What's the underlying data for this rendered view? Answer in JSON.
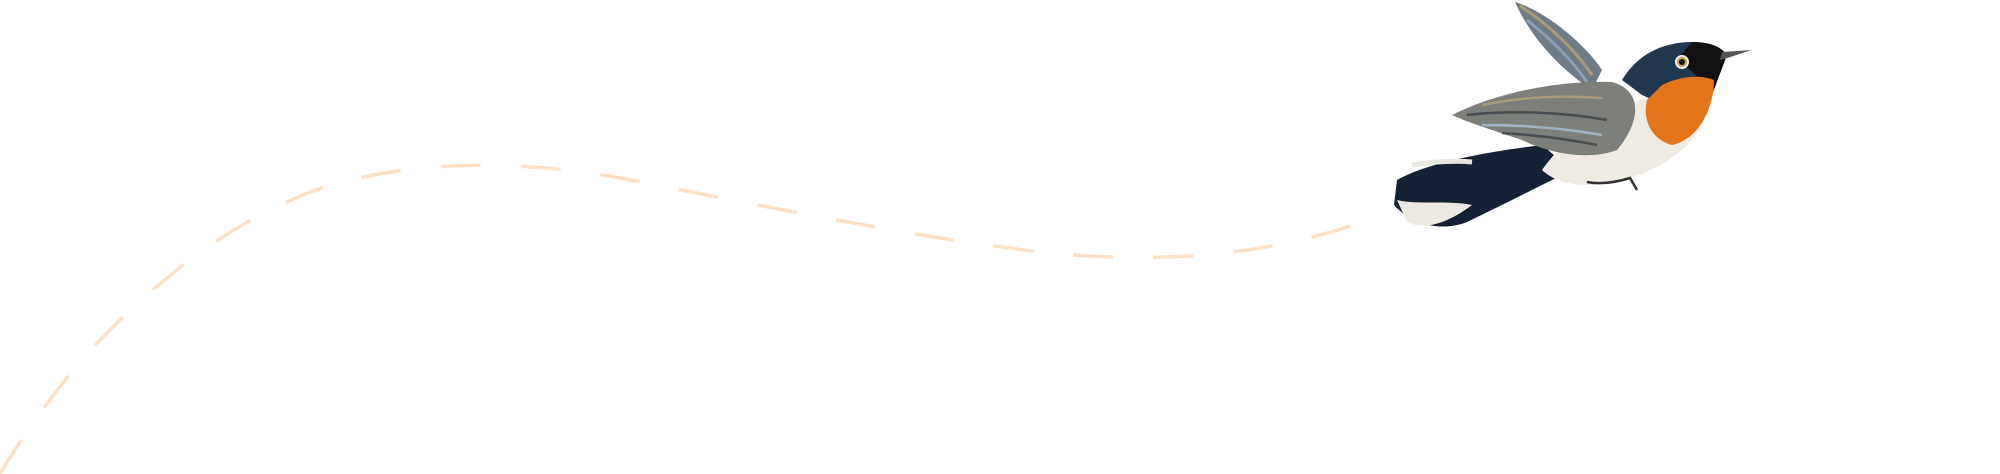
{
  "colors": {
    "background": "#ffffff",
    "flight_path": "#fde0c4",
    "bird_breast": "#e2741a",
    "bird_back": "#1d3148",
    "bird_wing": "#7d7f7a",
    "bird_belly": "#efebe2"
  },
  "illustration": {
    "subject": "bird-in-flight",
    "path_style": "dashed"
  }
}
